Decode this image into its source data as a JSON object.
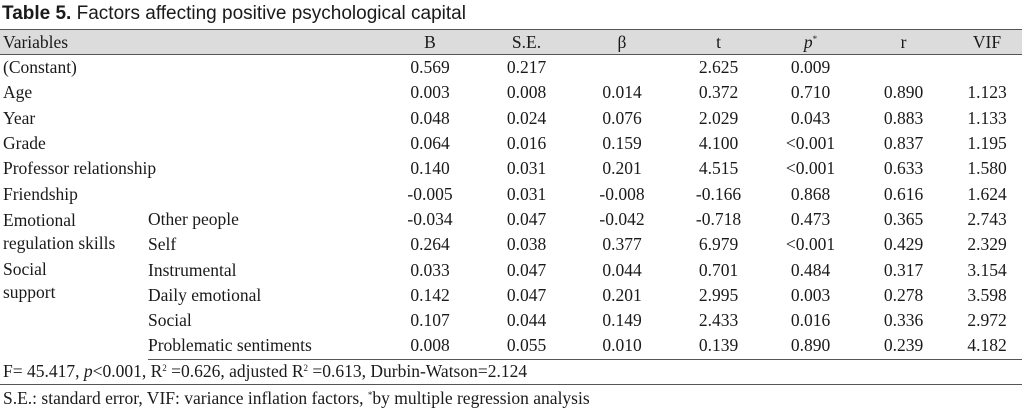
{
  "caption": {
    "label": "Table 5.",
    "text": " Factors affecting positive psychological capital"
  },
  "headers": {
    "variables": "Variables",
    "b": "B",
    "se": "S.E.",
    "beta": "β",
    "t": "t",
    "p": "p",
    "p_mark": "*",
    "r": "r",
    "vif": "VIF"
  },
  "rows": [
    {
      "label": "(Constant)",
      "b": "0.569",
      "se": "0.217",
      "beta": "",
      "t": "2.625",
      "p": "0.009",
      "r": "",
      "vif": ""
    },
    {
      "label": "Age",
      "b": "0.003",
      "se": "0.008",
      "beta": "0.014",
      "t": "0.372",
      "p": "0.710",
      "r": "0.890",
      "vif": "1.123"
    },
    {
      "label": "Year",
      "b": "0.048",
      "se": "0.024",
      "beta": "0.076",
      "t": "2.029",
      "p": "0.043",
      "r": "0.883",
      "vif": "1.133"
    },
    {
      "label": "Grade",
      "b": "0.064",
      "se": "0.016",
      "beta": "0.159",
      "t": "4.100",
      "p": "<0.001",
      "r": "0.837",
      "vif": "1.195"
    },
    {
      "label": "Professor relationship",
      "b": "0.140",
      "se": "0.031",
      "beta": "0.201",
      "t": "4.515",
      "p": "<0.001",
      "r": "0.633",
      "vif": "1.580"
    },
    {
      "label": "Friendship",
      "b": "-0.005",
      "se": "0.031",
      "beta": "-0.008",
      "t": "-0.166",
      "p": "0.868",
      "r": "0.616",
      "vif": "1.624"
    }
  ],
  "emotional": {
    "label_line1": "Emotional",
    "label_line2": "regulation skills",
    "rows": [
      {
        "label": "Other people",
        "b": "-0.034",
        "se": "0.047",
        "beta": "-0.042",
        "t": "-0.718",
        "p": "0.473",
        "r": "0.365",
        "vif": "2.743"
      },
      {
        "label": "Self",
        "b": "0.264",
        "se": "0.038",
        "beta": "0.377",
        "t": "6.979",
        "p": "<0.001",
        "r": "0.429",
        "vif": "2.329"
      }
    ]
  },
  "social": {
    "label_line1": "Social",
    "label_line2": "support",
    "rows": [
      {
        "label": "Instrumental",
        "b": "0.033",
        "se": "0.047",
        "beta": "0.044",
        "t": "0.701",
        "p": "0.484",
        "r": "0.317",
        "vif": "3.154"
      },
      {
        "label": "Daily emotional",
        "b": "0.142",
        "se": "0.047",
        "beta": "0.201",
        "t": "2.995",
        "p": "0.003",
        "r": "0.278",
        "vif": "3.598"
      },
      {
        "label": "Social",
        "b": "0.107",
        "se": "0.044",
        "beta": "0.149",
        "t": "2.433",
        "p": "0.016",
        "r": "0.336",
        "vif": "2.972"
      },
      {
        "label": "Problematic sentiments",
        "b": "0.008",
        "se": "0.055",
        "beta": "0.010",
        "t": "0.139",
        "p": "0.890",
        "r": "0.239",
        "vif": "4.182"
      }
    ]
  },
  "stats": {
    "f": "F= 45.417, ",
    "p_letter": "p",
    "p_rest": "<0.001, R",
    "sq1": "2",
    "r2": " =0.626, adjusted R",
    "sq2": "2",
    "adj": " =0.613, Durbin-Watson=2.124"
  },
  "footnote": {
    "part1": "S.E.: standard error, VIF: variance inflation factors, ",
    "mark": "*",
    "part2": "by multiple regression analysis"
  }
}
